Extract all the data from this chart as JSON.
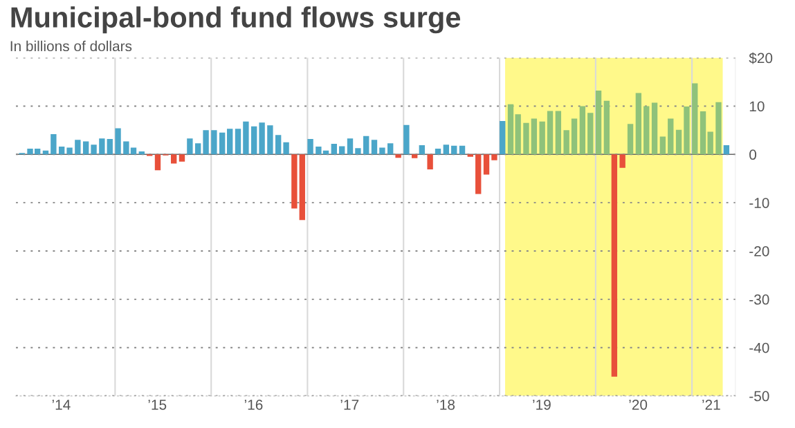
{
  "chart_data": {
    "type": "bar",
    "title": "Municipal-bond fund flows surge",
    "subtitle": "In billions of dollars",
    "x": [
      "2014-01",
      "2014-02",
      "2014-03",
      "2014-04",
      "2014-05",
      "2014-06",
      "2014-07",
      "2014-08",
      "2014-09",
      "2014-10",
      "2014-11",
      "2014-12",
      "2015-01",
      "2015-02",
      "2015-03",
      "2015-04",
      "2015-05",
      "2015-06",
      "2015-07",
      "2015-08",
      "2015-09",
      "2015-10",
      "2015-11",
      "2015-12",
      "2016-01",
      "2016-02",
      "2016-03",
      "2016-04",
      "2016-05",
      "2016-06",
      "2016-07",
      "2016-08",
      "2016-09",
      "2016-10",
      "2016-11",
      "2016-12",
      "2017-01",
      "2017-02",
      "2017-03",
      "2017-04",
      "2017-05",
      "2017-06",
      "2017-07",
      "2017-08",
      "2017-09",
      "2017-10",
      "2017-11",
      "2017-12",
      "2018-01",
      "2018-02",
      "2018-03",
      "2018-04",
      "2018-05",
      "2018-06",
      "2018-07",
      "2018-08",
      "2018-09",
      "2018-10",
      "2018-11",
      "2018-12",
      "2019-01",
      "2019-02",
      "2019-03",
      "2019-04",
      "2019-05",
      "2019-06",
      "2019-07",
      "2019-08",
      "2019-09",
      "2019-10",
      "2019-11",
      "2019-12",
      "2020-01",
      "2020-02",
      "2020-03",
      "2020-04",
      "2020-05",
      "2020-06",
      "2020-07",
      "2020-08",
      "2020-09",
      "2020-10",
      "2020-11",
      "2020-12",
      "2021-01",
      "2021-02",
      "2021-03",
      "2021-04",
      "2021-05"
    ],
    "values": [
      0.3,
      1.2,
      1.2,
      0.8,
      4.2,
      1.6,
      1.4,
      3.0,
      2.7,
      2.0,
      3.3,
      3.2,
      5.4,
      2.7,
      1.4,
      0.6,
      -0.3,
      -3.3,
      -0.2,
      -1.9,
      -1.5,
      3.3,
      2.3,
      5.0,
      5.0,
      4.5,
      5.3,
      5.3,
      6.8,
      5.8,
      6.6,
      6.0,
      4.0,
      2.5,
      -11.2,
      -13.6,
      3.2,
      1.6,
      0.8,
      2.2,
      1.7,
      3.3,
      1.3,
      3.8,
      3.0,
      1.4,
      2.3,
      -0.7,
      6.1,
      -0.8,
      1.9,
      -3.1,
      1.2,
      2.0,
      1.8,
      1.8,
      -0.5,
      -8.2,
      -4.2,
      -1.2,
      6.9,
      10.4,
      8.3,
      6.5,
      7.4,
      6.8,
      9.0,
      9.0,
      5.0,
      7.4,
      10.0,
      8.6,
      13.2,
      11.1,
      -46,
      -2.8,
      6.3,
      12.7,
      10.0,
      10.7,
      3.7,
      7.4,
      5.1,
      9.9,
      14.7,
      8.9,
      4.7,
      10.8,
      1.9
    ],
    "colors": [
      "#4ba6c9",
      "#4ba6c9",
      "#4ba6c9",
      "#4ba6c9",
      "#4ba6c9",
      "#4ba6c9",
      "#4ba6c9",
      "#4ba6c9",
      "#4ba6c9",
      "#4ba6c9",
      "#4ba6c9",
      "#4ba6c9",
      "#4ba6c9",
      "#4ba6c9",
      "#4ba6c9",
      "#4ba6c9",
      "#e8503a",
      "#e8503a",
      "#e8503a",
      "#e8503a",
      "#e8503a",
      "#4ba6c9",
      "#4ba6c9",
      "#4ba6c9",
      "#4ba6c9",
      "#4ba6c9",
      "#4ba6c9",
      "#4ba6c9",
      "#4ba6c9",
      "#4ba6c9",
      "#4ba6c9",
      "#4ba6c9",
      "#4ba6c9",
      "#4ba6c9",
      "#e8503a",
      "#e8503a",
      "#4ba6c9",
      "#4ba6c9",
      "#4ba6c9",
      "#4ba6c9",
      "#4ba6c9",
      "#4ba6c9",
      "#4ba6c9",
      "#4ba6c9",
      "#4ba6c9",
      "#4ba6c9",
      "#4ba6c9",
      "#e8503a",
      "#4ba6c9",
      "#e8503a",
      "#4ba6c9",
      "#e8503a",
      "#4ba6c9",
      "#4ba6c9",
      "#4ba6c9",
      "#4ba6c9",
      "#e8503a",
      "#e8503a",
      "#e8503a",
      "#e8503a",
      "#4ba6c9",
      "#8fc27a",
      "#8fc27a",
      "#8fc27a",
      "#8fc27a",
      "#8fc27a",
      "#8fc27a",
      "#8fc27a",
      "#8fc27a",
      "#8fc27a",
      "#8fc27a",
      "#8fc27a",
      "#8fc27a",
      "#8fc27a",
      "#e8503a",
      "#e8503a",
      "#8fc27a",
      "#8fc27a",
      "#8fc27a",
      "#8fc27a",
      "#8fc27a",
      "#8fc27a",
      "#8fc27a",
      "#8fc27a",
      "#8fc27a",
      "#8fc27a",
      "#8fc27a",
      "#8fc27a",
      "#4ba6c9"
    ],
    "ylim": [
      -50,
      20
    ],
    "yticks": [
      {
        "value": 20,
        "label": "$20"
      },
      10,
      0,
      -10,
      -20,
      -30,
      -40,
      -50
    ],
    "xlim": [
      "2013-12-20",
      "2021-06-15"
    ],
    "xticks": [
      {
        "value": "2014-06-10",
        "label": "’14"
      },
      {
        "value": "2015-06-10",
        "label": "’15"
      },
      {
        "value": "2016-06-10",
        "label": "’16"
      },
      {
        "value": "2017-06-10",
        "label": "’17"
      },
      {
        "value": "2018-06-10",
        "label": "’18"
      },
      {
        "value": "2019-06-10",
        "label": "’19"
      },
      {
        "value": "2020-06-10",
        "label": "’20"
      },
      {
        "value": "2021-03-15",
        "label": "’21"
      }
    ],
    "grid": "y",
    "ref_lines": [
      {
        "axis": "y",
        "value": 0,
        "color": "#666666"
      },
      {
        "axis": "x",
        "value": "2015-01-01",
        "color": "#d9d9d9"
      },
      {
        "axis": "x",
        "value": "2016-01-01",
        "color": "#d9d9d9"
      },
      {
        "axis": "x",
        "value": "2017-01-01",
        "color": "#d9d9d9"
      },
      {
        "axis": "x",
        "value": "2018-01-01",
        "color": "#d9d9d9"
      },
      {
        "axis": "x",
        "value": "2019-01-01",
        "color": "#d9d9d9"
      },
      {
        "axis": "x",
        "value": "2020-01-01",
        "color": "#d9d9d9"
      },
      {
        "axis": "x",
        "value": "2021-01-01",
        "color": "#d9d9d9"
      }
    ],
    "bands": [
      {
        "axis": "x",
        "from": "2019-01-22",
        "to": "2021-04-28",
        "color": "#fff98a"
      }
    ]
  }
}
